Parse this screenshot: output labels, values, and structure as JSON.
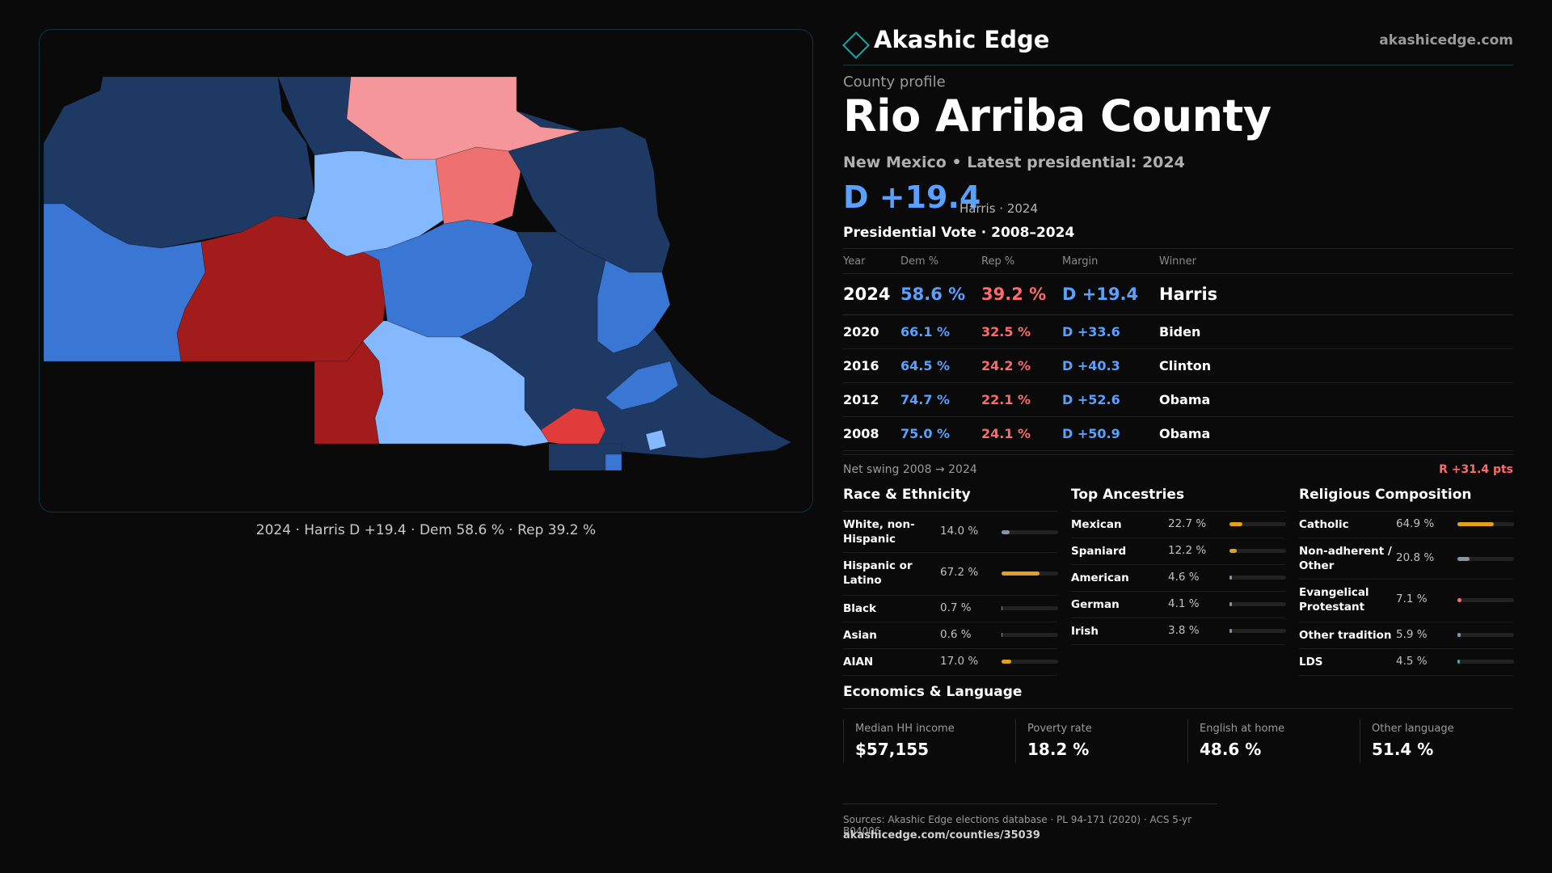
{
  "brand": {
    "name": "Akashic Edge",
    "url": "akashicedge.com"
  },
  "profile": {
    "kicker": "County profile",
    "county": "Rio Arriba County",
    "subtitle": "New Mexico • Latest presidential: 2024",
    "headline_margin": "D +19.4",
    "headline_note": "Harris · 2024"
  },
  "map": {
    "caption": "2024 · Harris D +19.4 · Dem 58.6 % · Rep 39.2 %",
    "colors": {
      "safe_dem": "#1e3a64",
      "likely_dem": "#3a76d4",
      "lean_dem": "#84b8ff",
      "lean_rep": "#f5979a",
      "likely_rep": "#ef7070",
      "safe_rep": "#a21c1c",
      "toss_rep": "#e03c3c"
    }
  },
  "vote": {
    "title": "Presidential Vote · 2008–2024",
    "headers": {
      "year": "Year",
      "dem": "Dem %",
      "rep": "Rep %",
      "margin": "Margin",
      "winner": "Winner"
    },
    "rows": [
      {
        "year": "2024",
        "dem": "58.6 %",
        "rep": "39.2 %",
        "margin": "D +19.4",
        "winner": "Harris"
      },
      {
        "year": "2020",
        "dem": "66.1 %",
        "rep": "32.5 %",
        "margin": "D +33.6",
        "winner": "Biden"
      },
      {
        "year": "2016",
        "dem": "64.5 %",
        "rep": "24.2 %",
        "margin": "D +40.3",
        "winner": "Clinton"
      },
      {
        "year": "2012",
        "dem": "74.7 %",
        "rep": "22.1 %",
        "margin": "D +52.6",
        "winner": "Obama"
      },
      {
        "year": "2008",
        "dem": "75.0 %",
        "rep": "24.1 %",
        "margin": "D +50.9",
        "winner": "Obama"
      }
    ],
    "swing_label": "Net swing 2008 → 2024",
    "swing_value": "R +31.4 pts"
  },
  "race": {
    "title": "Race & Ethnicity",
    "items": [
      {
        "label": "White, non-Hispanic",
        "pct": "14.0 %",
        "value": 14.0,
        "color": "#8a93a3"
      },
      {
        "label": "Hispanic or Latino",
        "pct": "67.2 %",
        "value": 67.2,
        "color": "#e0a020"
      },
      {
        "label": "Black",
        "pct": "0.7 %",
        "value": 0.7,
        "color": "#8a93a3"
      },
      {
        "label": "Asian",
        "pct": "0.6 %",
        "value": 0.6,
        "color": "#8a93a3"
      },
      {
        "label": "AIAN",
        "pct": "17.0 %",
        "value": 17.0,
        "color": "#e0a020"
      }
    ]
  },
  "ancestry": {
    "title": "Top Ancestries",
    "items": [
      {
        "label": "Mexican",
        "pct": "22.7 %",
        "value": 22.7,
        "color": "#e0a020"
      },
      {
        "label": "Spaniard",
        "pct": "12.2 %",
        "value": 12.2,
        "color": "#e0a020"
      },
      {
        "label": "American",
        "pct": "4.6 %",
        "value": 4.6,
        "color": "#8a93a3"
      },
      {
        "label": "German",
        "pct": "4.1 %",
        "value": 4.1,
        "color": "#8a93a3"
      },
      {
        "label": "Irish",
        "pct": "3.8 %",
        "value": 3.8,
        "color": "#8a93a3"
      }
    ]
  },
  "religion": {
    "title": "Religious Composition",
    "items": [
      {
        "label": "Catholic",
        "pct": "64.9 %",
        "value": 64.9,
        "color": "#e0a020"
      },
      {
        "label": "Non-adherent / Other",
        "pct": "20.8 %",
        "value": 20.8,
        "color": "#8a93a3"
      },
      {
        "label": "Evangelical Protestant",
        "pct": "7.1 %",
        "value": 7.1,
        "color": "#ff6b6b"
      },
      {
        "label": "Other tradition",
        "pct": "5.9 %",
        "value": 5.9,
        "color": "#8a93a3"
      },
      {
        "label": "LDS",
        "pct": "4.5 %",
        "value": 4.5,
        "color": "#2ab0b0"
      }
    ]
  },
  "economics": {
    "title": "Economics & Language",
    "items": [
      {
        "label": "Median HH income",
        "value": "$57,155"
      },
      {
        "label": "Poverty rate",
        "value": "18.2 %"
      },
      {
        "label": "English at home",
        "value": "48.6 %"
      },
      {
        "label": "Other language",
        "value": "51.4 %"
      }
    ]
  },
  "footer": {
    "sources": "Sources: Akashic Edge elections database · PL 94-171 (2020) · ACS 5-yr B04006",
    "url": "akashicedge.com/counties/35039"
  }
}
